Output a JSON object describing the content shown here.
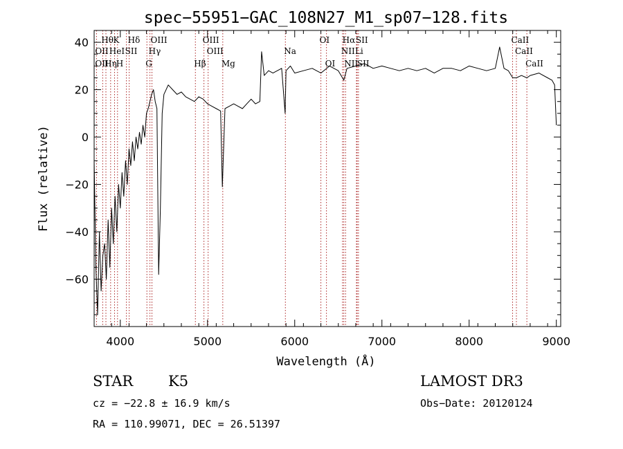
{
  "chart_data": {
    "type": "line",
    "title": "spec−55951−GAC_108N27_M1_sp07−128.fits",
    "xlabel": "Wavelength (Å)",
    "ylabel": "Flux (relative)",
    "xlim": [
      3700,
      9050
    ],
    "ylim": [
      -80,
      45
    ],
    "xticks": [
      4000,
      5000,
      6000,
      7000,
      8000,
      9000
    ],
    "yticks": [
      -60,
      -40,
      -20,
      0,
      20,
      40
    ],
    "tick_labels_x": [
      "4000",
      "5000",
      "6000",
      "7000",
      "8000",
      "9000"
    ],
    "tick_labels_y": [
      "−60",
      "−40",
      "−20",
      "0",
      "20",
      "40"
    ],
    "grid": false,
    "series_color": "#000000",
    "marker_color": "#aa2222",
    "spectrum": {
      "x": [
        3700,
        3720,
        3740,
        3760,
        3780,
        3800,
        3820,
        3840,
        3860,
        3880,
        3900,
        3920,
        3940,
        3960,
        3980,
        4000,
        4020,
        4040,
        4060,
        4080,
        4100,
        4120,
        4140,
        4160,
        4180,
        4200,
        4220,
        4240,
        4260,
        4280,
        4300,
        4320,
        4340,
        4360,
        4380,
        4400,
        4420,
        4440,
        4460,
        4480,
        4500,
        4550,
        4600,
        4650,
        4700,
        4750,
        4800,
        4850,
        4900,
        4950,
        5000,
        5050,
        5100,
        5150,
        5170,
        5200,
        5250,
        5300,
        5350,
        5400,
        5450,
        5500,
        5550,
        5600,
        5620,
        5650,
        5700,
        5750,
        5800,
        5850,
        5890,
        5900,
        5950,
        6000,
        6100,
        6200,
        6300,
        6400,
        6500,
        6563,
        6600,
        6700,
        6800,
        6900,
        7000,
        7100,
        7200,
        7300,
        7400,
        7500,
        7600,
        7700,
        7800,
        7900,
        8000,
        8100,
        8200,
        8300,
        8350,
        8400,
        8450,
        8500,
        8542,
        8600,
        8662,
        8700,
        8800,
        8900,
        8950,
        8980,
        9000
      ],
      "y": [
        -10,
        -55,
        -75,
        -40,
        -65,
        -50,
        -45,
        -60,
        -35,
        -55,
        -30,
        -45,
        -25,
        -40,
        -20,
        -30,
        -15,
        -25,
        -10,
        -20,
        -5,
        -12,
        -2,
        -10,
        0,
        -5,
        2,
        -3,
        5,
        0,
        10,
        12,
        15,
        18,
        20,
        15,
        12,
        -58,
        -30,
        10,
        18,
        22,
        20,
        18,
        19,
        17,
        16,
        15,
        17,
        16,
        14,
        13,
        12,
        11,
        -21,
        12,
        13,
        14,
        13,
        12,
        14,
        16,
        14,
        15,
        36,
        26,
        28,
        27,
        28,
        29,
        10,
        28,
        30,
        27,
        28,
        29,
        27,
        30,
        28,
        24,
        29,
        30,
        31,
        29,
        30,
        29,
        28,
        29,
        28,
        29,
        27,
        29,
        29,
        28,
        30,
        29,
        28,
        29,
        38,
        29,
        28,
        25,
        25,
        26,
        25,
        26,
        27,
        25,
        24,
        22,
        5
      ]
    },
    "lines": [
      {
        "label": "Hθ",
        "x": 3798,
        "row": 1
      },
      {
        "label": "K",
        "x": 3934,
        "row": 1
      },
      {
        "label": "Hδ",
        "x": 4102,
        "row": 1
      },
      {
        "label": "OIII",
        "x": 4363,
        "row": 1
      },
      {
        "label": "OIII",
        "x": 4959,
        "row": 1
      },
      {
        "label": "OI",
        "x": 6300,
        "row": 1
      },
      {
        "label": "Hα",
        "x": 6563,
        "row": 1
      },
      {
        "label": "SII",
        "x": 6716,
        "row": 1
      },
      {
        "label": "CaII",
        "x": 8498,
        "row": 1
      },
      {
        "label": "OII",
        "x": 3727,
        "row": 2
      },
      {
        "label": "HeI",
        "x": 3889,
        "row": 2
      },
      {
        "label": "SII",
        "x": 4070,
        "row": 2
      },
      {
        "label": "Hγ",
        "x": 4340,
        "row": 2
      },
      {
        "label": "OIII",
        "x": 5007,
        "row": 2
      },
      {
        "label": "Na",
        "x": 5893,
        "row": 2
      },
      {
        "label": "NII",
        "x": 6548,
        "row": 2
      },
      {
        "label": "Li",
        "x": 6708,
        "row": 2
      },
      {
        "label": "CaII",
        "x": 8542,
        "row": 2
      },
      {
        "label": "OII",
        "x": 3727,
        "row": 3
      },
      {
        "label": "Hη",
        "x": 3835,
        "row": 3
      },
      {
        "label": "H",
        "x": 3968,
        "row": 3
      },
      {
        "label": "G",
        "x": 4305,
        "row": 3
      },
      {
        "label": "Hβ",
        "x": 4861,
        "row": 3
      },
      {
        "label": "Mg",
        "x": 5175,
        "row": 3
      },
      {
        "label": "OI",
        "x": 6364,
        "row": 3
      },
      {
        "label": "NII",
        "x": 6583,
        "row": 3
      },
      {
        "label": "SII",
        "x": 6731,
        "row": 3
      },
      {
        "label": "CaII",
        "x": 8662,
        "row": 3
      }
    ]
  },
  "info": {
    "class": "STAR",
    "subclass": "K5",
    "survey": "LAMOST DR3",
    "cz": "cz = −22.8 ± 16.9 km/s",
    "obs_date": "Obs−Date: 20120124",
    "coords": "RA = 110.99071, DEC =  26.51397"
  }
}
